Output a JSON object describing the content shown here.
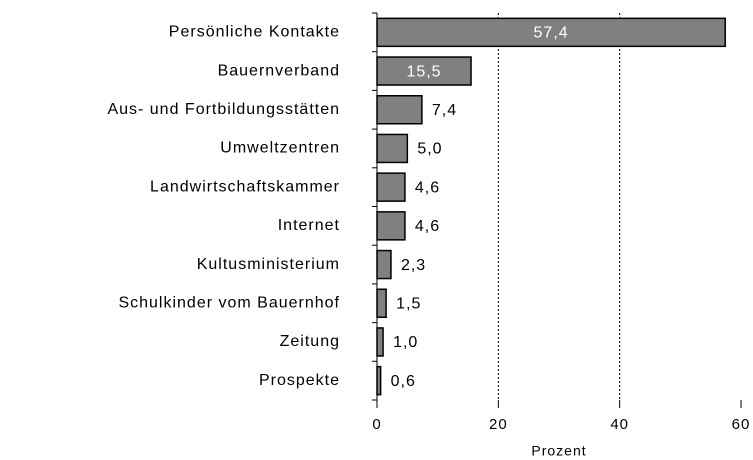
{
  "chart_data": {
    "type": "hbar",
    "categories": [
      "Persönliche Kontakte",
      "Bauernverband",
      "Aus- und Fortbildungsstätten",
      "Umweltzentren",
      "Landwirtschaftskammer",
      "Internet",
      "Kultusministerium",
      "Schulkinder vom Bauernhof",
      "Zeitung",
      "Prospekte"
    ],
    "values": [
      57.4,
      15.5,
      7.4,
      5.0,
      4.6,
      4.6,
      2.3,
      1.5,
      1.0,
      0.6
    ],
    "value_labels": [
      "57,4",
      "15,5",
      "7,4",
      "5,0",
      "4,6",
      "4,6",
      "2,3",
      "1,5",
      "1,0",
      "0,6"
    ],
    "color": "#808080",
    "xlim": [
      0,
      60
    ],
    "xticks": [
      0,
      20,
      40,
      60
    ],
    "xlabel": "Prozent",
    "grid": true
  }
}
